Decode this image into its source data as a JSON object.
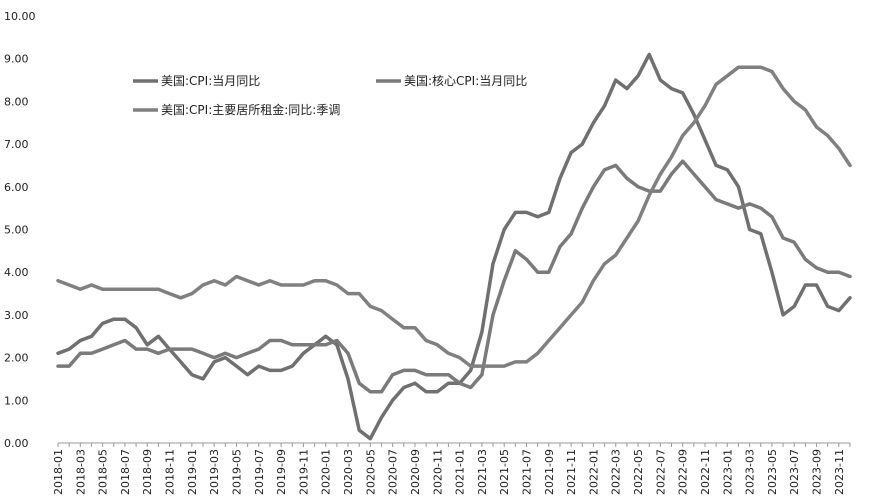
{
  "chart_data": {
    "type": "line",
    "title": "",
    "xlabel": "",
    "ylabel": "",
    "ylim": [
      0,
      10
    ],
    "yticks": [
      "0.00",
      "1.00",
      "2.00",
      "3.00",
      "4.00",
      "5.00",
      "6.00",
      "7.00",
      "8.00",
      "9.00",
      "10.00"
    ],
    "grid": false,
    "legend_position": "top-left",
    "x": [
      "2018-01",
      "2018-02",
      "2018-03",
      "2018-04",
      "2018-05",
      "2018-06",
      "2018-07",
      "2018-08",
      "2018-09",
      "2018-10",
      "2018-11",
      "2018-12",
      "2019-01",
      "2019-02",
      "2019-03",
      "2019-04",
      "2019-05",
      "2019-06",
      "2019-07",
      "2019-08",
      "2019-09",
      "2019-10",
      "2019-11",
      "2019-12",
      "2020-01",
      "2020-02",
      "2020-03",
      "2020-04",
      "2020-05",
      "2020-06",
      "2020-07",
      "2020-08",
      "2020-09",
      "2020-10",
      "2020-11",
      "2020-12",
      "2021-01",
      "2021-02",
      "2021-03",
      "2021-04",
      "2021-05",
      "2021-06",
      "2021-07",
      "2021-08",
      "2021-09",
      "2021-10",
      "2021-11",
      "2021-12",
      "2022-01",
      "2022-02",
      "2022-03",
      "2022-04",
      "2022-05",
      "2022-06",
      "2022-07",
      "2022-08",
      "2022-09",
      "2022-10",
      "2022-11",
      "2022-12",
      "2023-01",
      "2023-02",
      "2023-03",
      "2023-04",
      "2023-05",
      "2023-06",
      "2023-07",
      "2023-08",
      "2023-09",
      "2023-10",
      "2023-11",
      "2023-12"
    ],
    "xtick_labels": [
      "2018-01",
      "2018-03",
      "2018-05",
      "2018-07",
      "2018-09",
      "2018-11",
      "2019-01",
      "2019-03",
      "2019-05",
      "2019-07",
      "2019-09",
      "2019-11",
      "2020-01",
      "2020-03",
      "2020-05",
      "2020-07",
      "2020-09",
      "2020-11",
      "2021-01",
      "2021-03",
      "2021-05",
      "2021-07",
      "2021-09",
      "2021-11",
      "2022-01",
      "2022-03",
      "2022-05",
      "2022-07",
      "2022-09",
      "2022-11",
      "2023-01",
      "2023-03",
      "2023-05",
      "2023-07",
      "2023-09",
      "2023-11"
    ],
    "series": [
      {
        "name": "美国:CPI:当月同比",
        "color": "#707070",
        "values": [
          2.1,
          2.2,
          2.4,
          2.5,
          2.8,
          2.9,
          2.9,
          2.7,
          2.3,
          2.5,
          2.2,
          1.9,
          1.6,
          1.5,
          1.9,
          2.0,
          1.8,
          1.6,
          1.8,
          1.7,
          1.7,
          1.8,
          2.1,
          2.3,
          2.5,
          2.3,
          1.5,
          0.3,
          0.1,
          0.6,
          1.0,
          1.3,
          1.4,
          1.2,
          1.2,
          1.4,
          1.4,
          1.7,
          2.6,
          4.2,
          5.0,
          5.4,
          5.4,
          5.3,
          5.4,
          6.2,
          6.8,
          7.0,
          7.5,
          7.9,
          8.5,
          8.3,
          8.6,
          9.1,
          8.5,
          8.3,
          8.2,
          7.7,
          7.1,
          6.5,
          6.4,
          6.0,
          5.0,
          4.9,
          4.0,
          3.0,
          3.2,
          3.7,
          3.7,
          3.2,
          3.1,
          3.4
        ]
      },
      {
        "name": "美国:核心CPI:当月同比",
        "color": "#7a7a7a",
        "values": [
          1.8,
          1.8,
          2.1,
          2.1,
          2.2,
          2.3,
          2.4,
          2.2,
          2.2,
          2.1,
          2.2,
          2.2,
          2.2,
          2.1,
          2.0,
          2.1,
          2.0,
          2.1,
          2.2,
          2.4,
          2.4,
          2.3,
          2.3,
          2.3,
          2.3,
          2.4,
          2.1,
          1.4,
          1.2,
          1.2,
          1.6,
          1.7,
          1.7,
          1.6,
          1.6,
          1.6,
          1.4,
          1.3,
          1.6,
          3.0,
          3.8,
          4.5,
          4.3,
          4.0,
          4.0,
          4.6,
          4.9,
          5.5,
          6.0,
          6.4,
          6.5,
          6.2,
          6.0,
          5.9,
          5.9,
          6.3,
          6.6,
          6.3,
          6.0,
          5.7,
          5.6,
          5.5,
          5.6,
          5.5,
          5.3,
          4.8,
          4.7,
          4.3,
          4.1,
          4.0,
          4.0,
          3.9
        ]
      },
      {
        "name": "美国:CPI:主要居所租金:同比:季调",
        "color": "#808080",
        "values": [
          3.8,
          3.7,
          3.6,
          3.7,
          3.6,
          3.6,
          3.6,
          3.6,
          3.6,
          3.6,
          3.5,
          3.4,
          3.5,
          3.7,
          3.8,
          3.7,
          3.9,
          3.8,
          3.7,
          3.8,
          3.7,
          3.7,
          3.7,
          3.8,
          3.8,
          3.7,
          3.5,
          3.5,
          3.2,
          3.1,
          2.9,
          2.7,
          2.7,
          2.4,
          2.3,
          2.1,
          2.0,
          1.8,
          1.8,
          1.8,
          1.8,
          1.9,
          1.9,
          2.1,
          2.4,
          2.7,
          3.0,
          3.3,
          3.8,
          4.2,
          4.4,
          4.8,
          5.2,
          5.8,
          6.3,
          6.7,
          7.2,
          7.5,
          7.9,
          8.4,
          8.6,
          8.8,
          8.8,
          8.8,
          8.7,
          8.3,
          8.0,
          7.8,
          7.4,
          7.2,
          6.9,
          6.5
        ]
      }
    ]
  }
}
